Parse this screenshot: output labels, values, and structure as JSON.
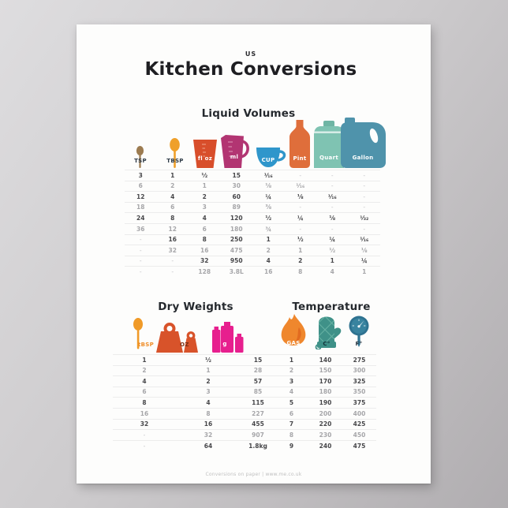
{
  "poster": {
    "kicker": "US",
    "title": "Kitchen Conversions",
    "footer": "Conversions on paper  |  www.me.co.uk"
  },
  "liquid": {
    "heading": "Liquid Volumes",
    "columns": [
      {
        "label": "TSP",
        "icon": "teaspoon-icon"
      },
      {
        "label": "TBSP",
        "icon": "tablespoon-icon"
      },
      {
        "label": "fl oz",
        "icon": "fluid-ounce-cup-icon"
      },
      {
        "label": "ml",
        "icon": "milliliter-jug-icon"
      },
      {
        "label": "CUP",
        "icon": "cup-icon"
      },
      {
        "label": "Pint",
        "icon": "pint-bottle-icon"
      },
      {
        "label": "Quart",
        "icon": "quart-jug-icon"
      },
      {
        "label": "Gallon",
        "icon": "gallon-jug-icon"
      }
    ],
    "rows": [
      [
        "3",
        "1",
        "½",
        "15",
        "¹⁄₁₆",
        "-",
        "-",
        "-"
      ],
      [
        "6",
        "2",
        "1",
        "30",
        "⅛",
        "¹⁄₁₆",
        "-",
        "-"
      ],
      [
        "12",
        "4",
        "2",
        "60",
        "¼",
        "⅛",
        "¹⁄₁₆",
        "-"
      ],
      [
        "18",
        "6",
        "3",
        "89",
        "⅜",
        "-",
        "-",
        "-"
      ],
      [
        "24",
        "8",
        "4",
        "120",
        "½",
        "¼",
        "⅛",
        "¹⁄₃₂"
      ],
      [
        "36",
        "12",
        "6",
        "180",
        "¾",
        "-",
        "-",
        "-"
      ],
      [
        "-",
        "16",
        "8",
        "250",
        "1",
        "½",
        "¼",
        "¹⁄₁₆"
      ],
      [
        "-",
        "32",
        "16",
        "475",
        "2",
        "1",
        "½",
        "⅛"
      ],
      [
        "-",
        "-",
        "32",
        "950",
        "4",
        "2",
        "1",
        "¼"
      ],
      [
        "-",
        "-",
        "128",
        "3.8L",
        "16",
        "8",
        "4",
        "1"
      ]
    ]
  },
  "dry": {
    "heading": "Dry Weights",
    "columns": [
      {
        "label": "tBSP",
        "icon": "dry-spoon-icon"
      },
      {
        "label": "OZ",
        "icon": "ounce-weights-icon"
      },
      {
        "label": "g",
        "icon": "gram-weights-icon"
      }
    ],
    "rows": [
      [
        "1",
        "½",
        "15"
      ],
      [
        "2",
        "1",
        "28"
      ],
      [
        "4",
        "2",
        "57"
      ],
      [
        "6",
        "3",
        "85"
      ],
      [
        "8",
        "4",
        "115"
      ],
      [
        "16",
        "8",
        "227"
      ],
      [
        "32",
        "16",
        "455"
      ],
      [
        "-",
        "32",
        "907"
      ],
      [
        "-",
        "64",
        "1.8kg"
      ]
    ]
  },
  "temperature": {
    "heading": "Temperature",
    "columns": [
      {
        "label": "GAS",
        "icon": "gas-flame-icon"
      },
      {
        "label": "C°",
        "icon": "oven-mitt-icon"
      },
      {
        "label": "F°",
        "icon": "thermometer-icon"
      }
    ],
    "rows": [
      [
        "1",
        "140",
        "275"
      ],
      [
        "2",
        "150",
        "300"
      ],
      [
        "3",
        "170",
        "325"
      ],
      [
        "4",
        "180",
        "350"
      ],
      [
        "5",
        "190",
        "375"
      ],
      [
        "6",
        "200",
        "400"
      ],
      [
        "7",
        "220",
        "425"
      ],
      [
        "8",
        "230",
        "450"
      ],
      [
        "9",
        "240",
        "475"
      ]
    ]
  },
  "colors": {
    "background": "#c7c5c7",
    "poster": "#fdfdfc",
    "title": "#1e1e22",
    "heading": "#25292e",
    "teaspoon": "#9c7b50",
    "tablespoon": "#efa02a",
    "fl_oz_cup": "#d84e2b",
    "ml_jug": "#b23572",
    "cup": "#2f96cb",
    "pint": "#df6e3b",
    "quart": "#7fc3b2",
    "gallon": "#4f93ab",
    "oz_weights": "#d8532a",
    "gram_weights": "#e71f8e",
    "gas_flame": "#ef872d",
    "oven_mitt": "#3f9188",
    "thermometer": "#2e7290"
  }
}
